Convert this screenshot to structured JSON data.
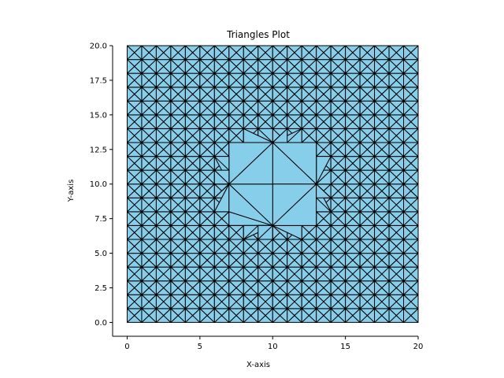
{
  "chart_data": {
    "type": "triangulation",
    "title": "Triangles Plot",
    "xlabel": "X-axis",
    "ylabel": "Y-axis",
    "xlim": [
      -1,
      20
    ],
    "ylim": [
      -1,
      20
    ],
    "x_ticks": [
      0,
      5,
      10,
      15,
      20
    ],
    "x_tick_labels": [
      "0",
      "5",
      "10",
      "15",
      "20"
    ],
    "y_ticks": [
      0.0,
      2.5,
      5.0,
      7.5,
      10.0,
      12.5,
      15.0,
      17.5,
      20.0
    ],
    "y_tick_labels": [
      "0.0",
      "2.5",
      "5.0",
      "7.5",
      "10.0",
      "12.5",
      "15.0",
      "17.5",
      "20.0"
    ],
    "grid": {
      "x_min": 0,
      "x_max": 20,
      "y_min": 0,
      "y_max": 20,
      "step": 1
    },
    "hole": {
      "center": [
        10,
        10
      ],
      "radius": 3,
      "polygon": [
        [
          10,
          13
        ],
        [
          13,
          10
        ],
        [
          10,
          7
        ],
        [
          7,
          10
        ]
      ]
    },
    "grid_lines_visible": false,
    "fill_color": "#87ceeb",
    "edge_color": "#000000"
  }
}
